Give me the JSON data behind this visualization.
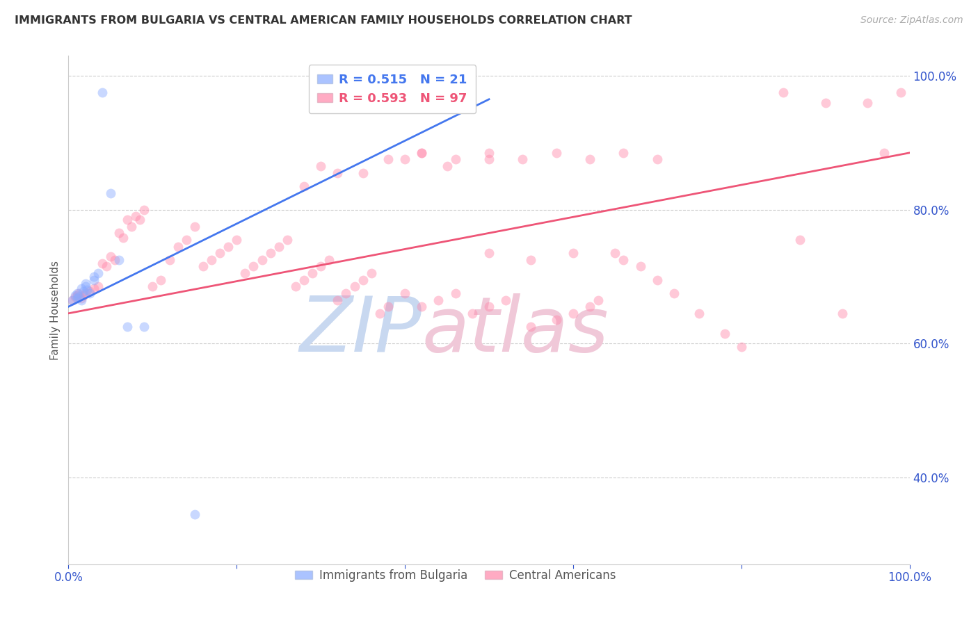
{
  "title": "IMMIGRANTS FROM BULGARIA VS CENTRAL AMERICAN FAMILY HOUSEHOLDS CORRELATION CHART",
  "source": "Source: ZipAtlas.com",
  "ylabel": "Family Households",
  "legend_blue_R": "0.515",
  "legend_blue_N": "21",
  "legend_pink_R": "0.593",
  "legend_pink_N": "97",
  "watermark": "ZIPatlas",
  "blue_scatter_x": [
    0.005,
    0.008,
    0.01,
    0.01,
    0.012,
    0.015,
    0.015,
    0.018,
    0.02,
    0.02,
    0.022,
    0.025,
    0.03,
    0.03,
    0.035,
    0.04,
    0.05,
    0.06,
    0.07,
    0.09,
    0.15
  ],
  "blue_scatter_y": [
    0.665,
    0.672,
    0.668,
    0.675,
    0.67,
    0.665,
    0.682,
    0.678,
    0.685,
    0.69,
    0.68,
    0.675,
    0.7,
    0.695,
    0.705,
    0.975,
    0.825,
    0.725,
    0.625,
    0.625,
    0.345
  ],
  "pink_scatter_x": [
    0.005,
    0.008,
    0.01,
    0.012,
    0.015,
    0.018,
    0.02,
    0.025,
    0.03,
    0.035,
    0.04,
    0.045,
    0.05,
    0.055,
    0.06,
    0.065,
    0.07,
    0.075,
    0.08,
    0.085,
    0.09,
    0.1,
    0.11,
    0.12,
    0.13,
    0.14,
    0.15,
    0.16,
    0.17,
    0.18,
    0.19,
    0.2,
    0.21,
    0.22,
    0.23,
    0.24,
    0.25,
    0.26,
    0.27,
    0.28,
    0.29,
    0.3,
    0.31,
    0.32,
    0.33,
    0.34,
    0.35,
    0.36,
    0.37,
    0.38,
    0.4,
    0.42,
    0.44,
    0.46,
    0.48,
    0.5,
    0.52,
    0.55,
    0.58,
    0.6,
    0.62,
    0.63,
    0.65,
    0.66,
    0.68,
    0.7,
    0.72,
    0.75,
    0.78,
    0.8,
    0.85,
    0.87,
    0.9,
    0.92,
    0.95,
    0.97,
    0.99,
    0.5,
    0.55,
    0.6,
    0.4,
    0.42,
    0.45,
    0.5,
    0.28,
    0.3,
    0.32,
    0.35,
    0.38,
    0.42,
    0.46,
    0.5,
    0.54,
    0.58,
    0.62,
    0.66,
    0.7
  ],
  "pink_scatter_y": [
    0.665,
    0.67,
    0.672,
    0.675,
    0.668,
    0.672,
    0.675,
    0.678,
    0.682,
    0.685,
    0.72,
    0.715,
    0.73,
    0.725,
    0.765,
    0.758,
    0.785,
    0.775,
    0.79,
    0.785,
    0.8,
    0.685,
    0.695,
    0.725,
    0.745,
    0.755,
    0.775,
    0.715,
    0.725,
    0.735,
    0.745,
    0.755,
    0.705,
    0.715,
    0.725,
    0.735,
    0.745,
    0.755,
    0.685,
    0.695,
    0.705,
    0.715,
    0.725,
    0.665,
    0.675,
    0.685,
    0.695,
    0.705,
    0.645,
    0.655,
    0.675,
    0.655,
    0.665,
    0.675,
    0.645,
    0.655,
    0.665,
    0.625,
    0.635,
    0.645,
    0.655,
    0.665,
    0.735,
    0.725,
    0.715,
    0.695,
    0.675,
    0.645,
    0.615,
    0.595,
    0.975,
    0.755,
    0.96,
    0.645,
    0.96,
    0.885,
    0.975,
    0.735,
    0.725,
    0.735,
    0.875,
    0.885,
    0.865,
    0.875,
    0.835,
    0.865,
    0.855,
    0.855,
    0.875,
    0.885,
    0.875,
    0.885,
    0.875,
    0.885,
    0.875,
    0.885,
    0.875
  ],
  "blue_line_x": [
    0.0,
    0.5
  ],
  "blue_line_y": [
    0.655,
    0.965
  ],
  "pink_line_x": [
    0.0,
    1.0
  ],
  "pink_line_y": [
    0.645,
    0.885
  ],
  "scatter_size": 100,
  "scatter_alpha": 0.45,
  "blue_color": "#88aaff",
  "pink_color": "#ff88aa",
  "blue_line_color": "#4477ee",
  "pink_line_color": "#ee5577",
  "title_color": "#333333",
  "source_color": "#aaaaaa",
  "axis_label_color": "#3355cc",
  "grid_color": "#cccccc",
  "watermark_blue": "#c8d8f0",
  "watermark_pink": "#f0c8d8",
  "xlim": [
    0.0,
    1.0
  ],
  "ylim": [
    0.27,
    1.03
  ],
  "yticks_right": [
    1.0,
    0.8,
    0.6,
    0.4
  ],
  "xticks": [
    0.0,
    0.2,
    0.4,
    0.6,
    0.8,
    1.0
  ],
  "xtick_labels": [
    "0.0%",
    "",
    "",
    "",
    "",
    "100.0%"
  ]
}
